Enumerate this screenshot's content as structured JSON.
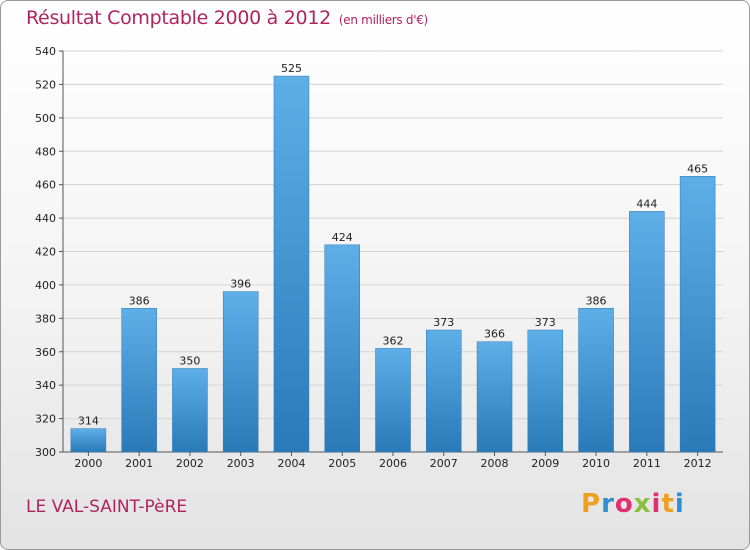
{
  "chart_data": {
    "type": "bar",
    "title": "Résultat Comptable 2000 à 2012",
    "subtitle": "(en milliers d'€)",
    "categories": [
      "2000",
      "2001",
      "2002",
      "2003",
      "2004",
      "2005",
      "2006",
      "2007",
      "2008",
      "2009",
      "2010",
      "2011",
      "2012"
    ],
    "values": [
      314,
      386,
      350,
      396,
      525,
      424,
      362,
      373,
      366,
      373,
      386,
      444,
      465
    ],
    "ylim": [
      300,
      540
    ],
    "yticks": [
      300,
      320,
      340,
      360,
      380,
      400,
      420,
      440,
      460,
      480,
      500,
      520,
      540
    ],
    "grid": true,
    "bar_color": "#3a8fd2",
    "xlabel": "",
    "ylabel": ""
  },
  "footer": {
    "place": "LE VAL-SAINT-PèRE",
    "logo": "Proxiti"
  },
  "colors": {
    "title": "#b0245e",
    "logo_letters": [
      "#f0a020",
      "#2f8fd0",
      "#e03070",
      "#8ac040",
      "#e03070",
      "#f0a020",
      "#2f8fd0"
    ]
  }
}
